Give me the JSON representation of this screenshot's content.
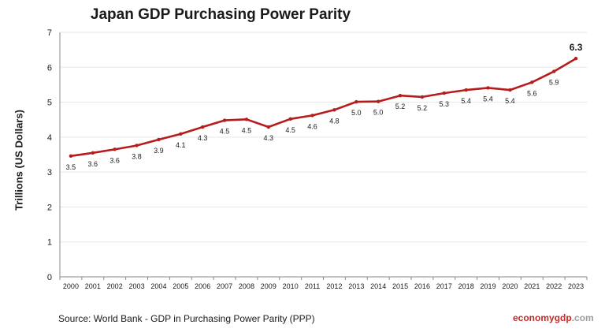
{
  "chart_data": {
    "type": "line",
    "title": "Japan GDP Purchasing Power Parity",
    "ylabel": "Trillions (US Dollars)",
    "xlabel": "",
    "ylim": [
      0,
      7
    ],
    "yticks": [
      0,
      1,
      2,
      3,
      4,
      5,
      6,
      7
    ],
    "grid": true,
    "line_color": "#b71c1c",
    "categories": [
      "2000",
      "2001",
      "2002",
      "2003",
      "2004",
      "2005",
      "2006",
      "2007",
      "2008",
      "2009",
      "2010",
      "2011",
      "2012",
      "2013",
      "2014",
      "2015",
      "2016",
      "2017",
      "2018",
      "2019",
      "2020",
      "2021",
      "2022",
      "2023"
    ],
    "series": [
      {
        "values": [
          3.46,
          3.55,
          3.65,
          3.76,
          3.93,
          4.09,
          4.29,
          4.48,
          4.51,
          4.29,
          4.52,
          4.62,
          4.78,
          5.01,
          5.02,
          5.19,
          5.15,
          5.26,
          5.35,
          5.41,
          5.35,
          5.57,
          5.88,
          6.25
        ],
        "data_labels": [
          "3.5",
          "3.6",
          "3.6",
          "3.8",
          "3.9",
          "4.1",
          "4.3",
          "4.5",
          "4.5",
          "4.3",
          "4.5",
          "4.6",
          "4.8",
          "5.0",
          "5.0",
          "5.2",
          "5.2",
          "5.3",
          "5.4",
          "5.4",
          "5.4",
          "5.6",
          "5.9",
          "6.3"
        ]
      }
    ]
  },
  "source_note": "Source:  World Bank -  GDP  in Purchasing Power Parity (PPP)",
  "logo": {
    "part1": "economy",
    "part2": "gdp",
    "part3": ".com"
  }
}
